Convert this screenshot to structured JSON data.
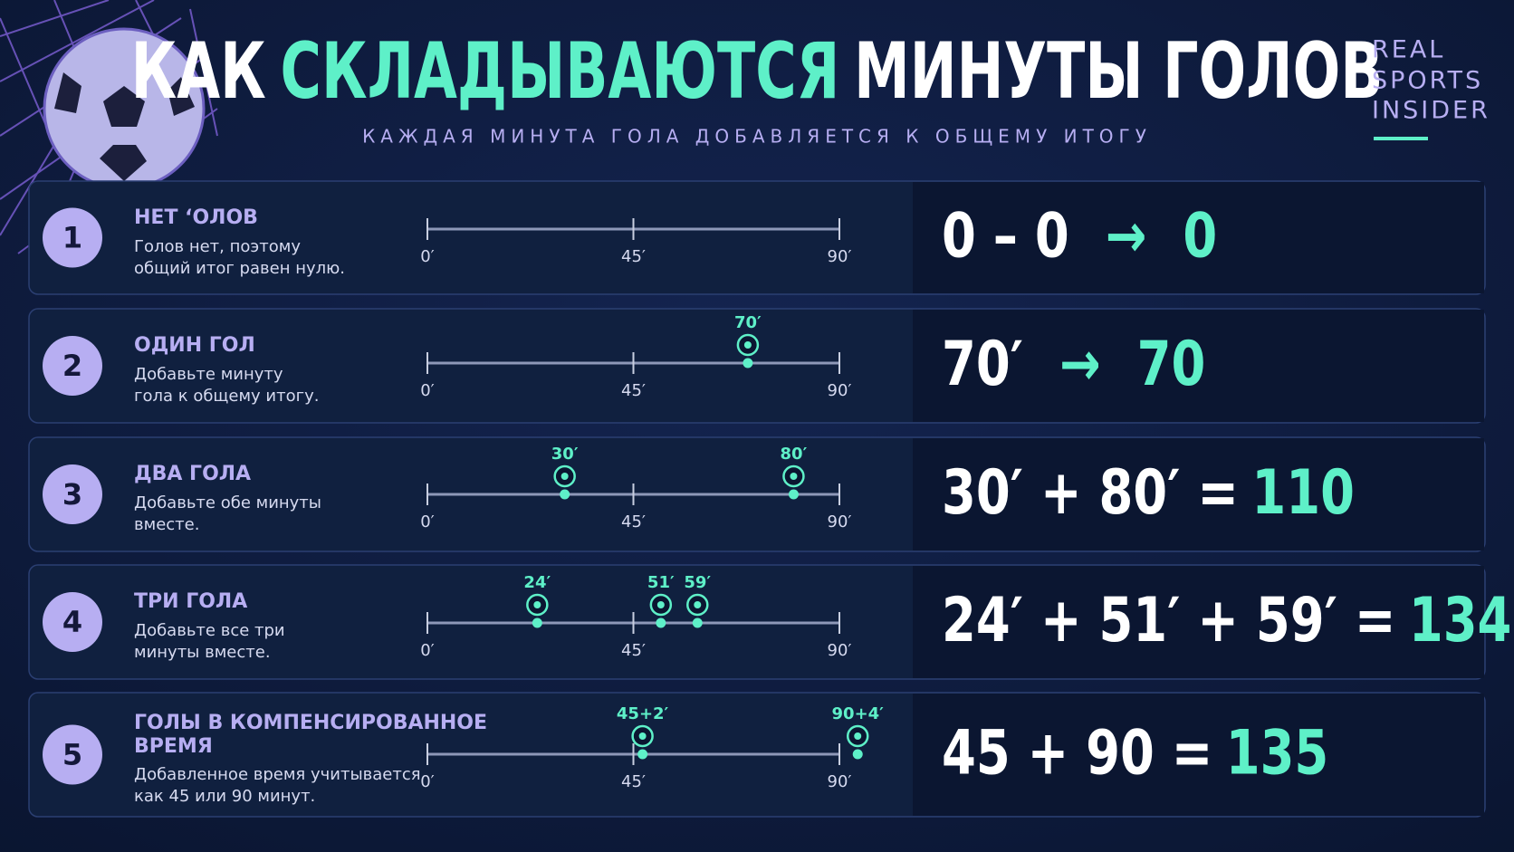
{
  "header": {
    "title": [
      "КАК",
      "СКЛАДЫВАЮТСЯ",
      "МИНУТЫ ГОЛОВ"
    ],
    "subtitle": "КАЖДАЯ МИНУТА ГОЛА ДОБАВЛЯЕТСЯ К ОБЩЕМУ ИТОГУ"
  },
  "brand": [
    "REAL",
    "SPORTS",
    "INSIDER"
  ],
  "timeline": {
    "xlim": [
      0,
      90
    ],
    "xticks": [
      {
        "value": 0,
        "label": "0′"
      },
      {
        "value": 45,
        "label": "45′"
      },
      {
        "value": 90,
        "label": "90′"
      }
    ]
  },
  "rows": [
    {
      "number": 1,
      "title": [
        "НЕТ ‘ОЛОВ"
      ],
      "description": [
        "Голов нет, поэтому",
        "общий итог равен нулю."
      ],
      "equation": {
        "lhs": "0 – 0",
        "arrow": "→",
        "result": "0"
      }
    },
    {
      "number": 2,
      "title": [
        "ОДИН ГОЛ"
      ],
      "description": [
        "Добавьте минуту",
        "гола к общему итогу."
      ],
      "goals": [
        {
          "value": 70,
          "label": "70′"
        }
      ],
      "equation": {
        "lhs": "70′",
        "arrow": "→",
        "result": "70"
      }
    },
    {
      "number": 3,
      "title": [
        "ДВА ГОЛА"
      ],
      "description": [
        "Добавьте обе минуты",
        "вместе."
      ],
      "goals": [
        {
          "value": 30,
          "label": "30′"
        },
        {
          "value": 80,
          "label": "80′"
        }
      ],
      "equation": {
        "lhs": "30′ + 80′ =",
        "result": "110"
      }
    },
    {
      "number": 4,
      "title": [
        "ТРИ ГОЛА"
      ],
      "description": [
        "Добавьте все три",
        "минуты вместе."
      ],
      "goals": [
        {
          "value": 24,
          "label": "24′"
        },
        {
          "value": 51,
          "label": "51′"
        },
        {
          "value": 59,
          "label": "59′"
        }
      ],
      "equation": {
        "lhs": "24′ + 51′ + 59′ =",
        "result": "134"
      }
    },
    {
      "number": 5,
      "title": [
        "ГОЛЫ В КОМПЕНСИРОВАННОЕ",
        "ВРЕМЯ"
      ],
      "description": [
        "Добавленное время учитывается",
        "как 45 или 90 минут."
      ],
      "goals": [
        {
          "value": 47,
          "label": "45+2′"
        },
        {
          "value": 94,
          "label": "90+4′"
        }
      ],
      "equation": {
        "lhs": "45 + 90 =",
        "result": "135"
      }
    }
  ]
}
